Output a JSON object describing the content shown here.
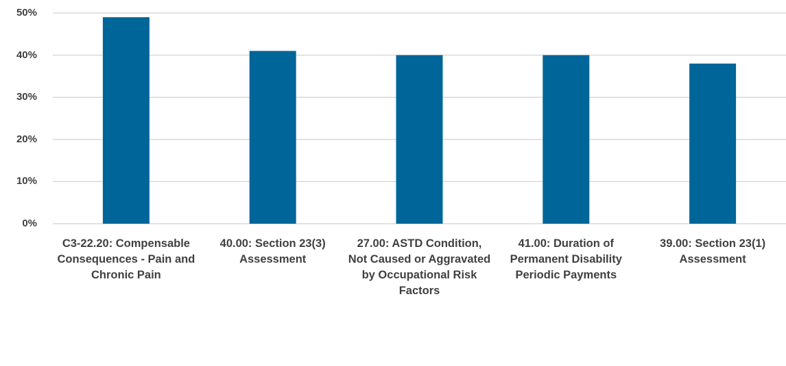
{
  "chart_data": {
    "type": "bar",
    "categories": [
      "C3-22.20: Compensable Consequences - Pain and Chronic Pain",
      "40.00: Section 23(3) Assessment",
      "27.00: ASTD Condition, Not Caused or Aggravated by Occupational Risk Factors",
      "41.00: Duration of Permanent Disability Periodic Payments",
      "39.00: Section 23(1) Assessment"
    ],
    "values": [
      49,
      41,
      40,
      40,
      38
    ],
    "color": "#00669a",
    "ylim": [
      0,
      50
    ],
    "yticks": [
      {
        "value": 0,
        "label": "0%"
      },
      {
        "value": 10,
        "label": "10%"
      },
      {
        "value": 20,
        "label": "20%"
      },
      {
        "value": 30,
        "label": "30%"
      },
      {
        "value": 40,
        "label": "40%"
      },
      {
        "value": 50,
        "label": "50%"
      }
    ],
    "grid": true
  }
}
